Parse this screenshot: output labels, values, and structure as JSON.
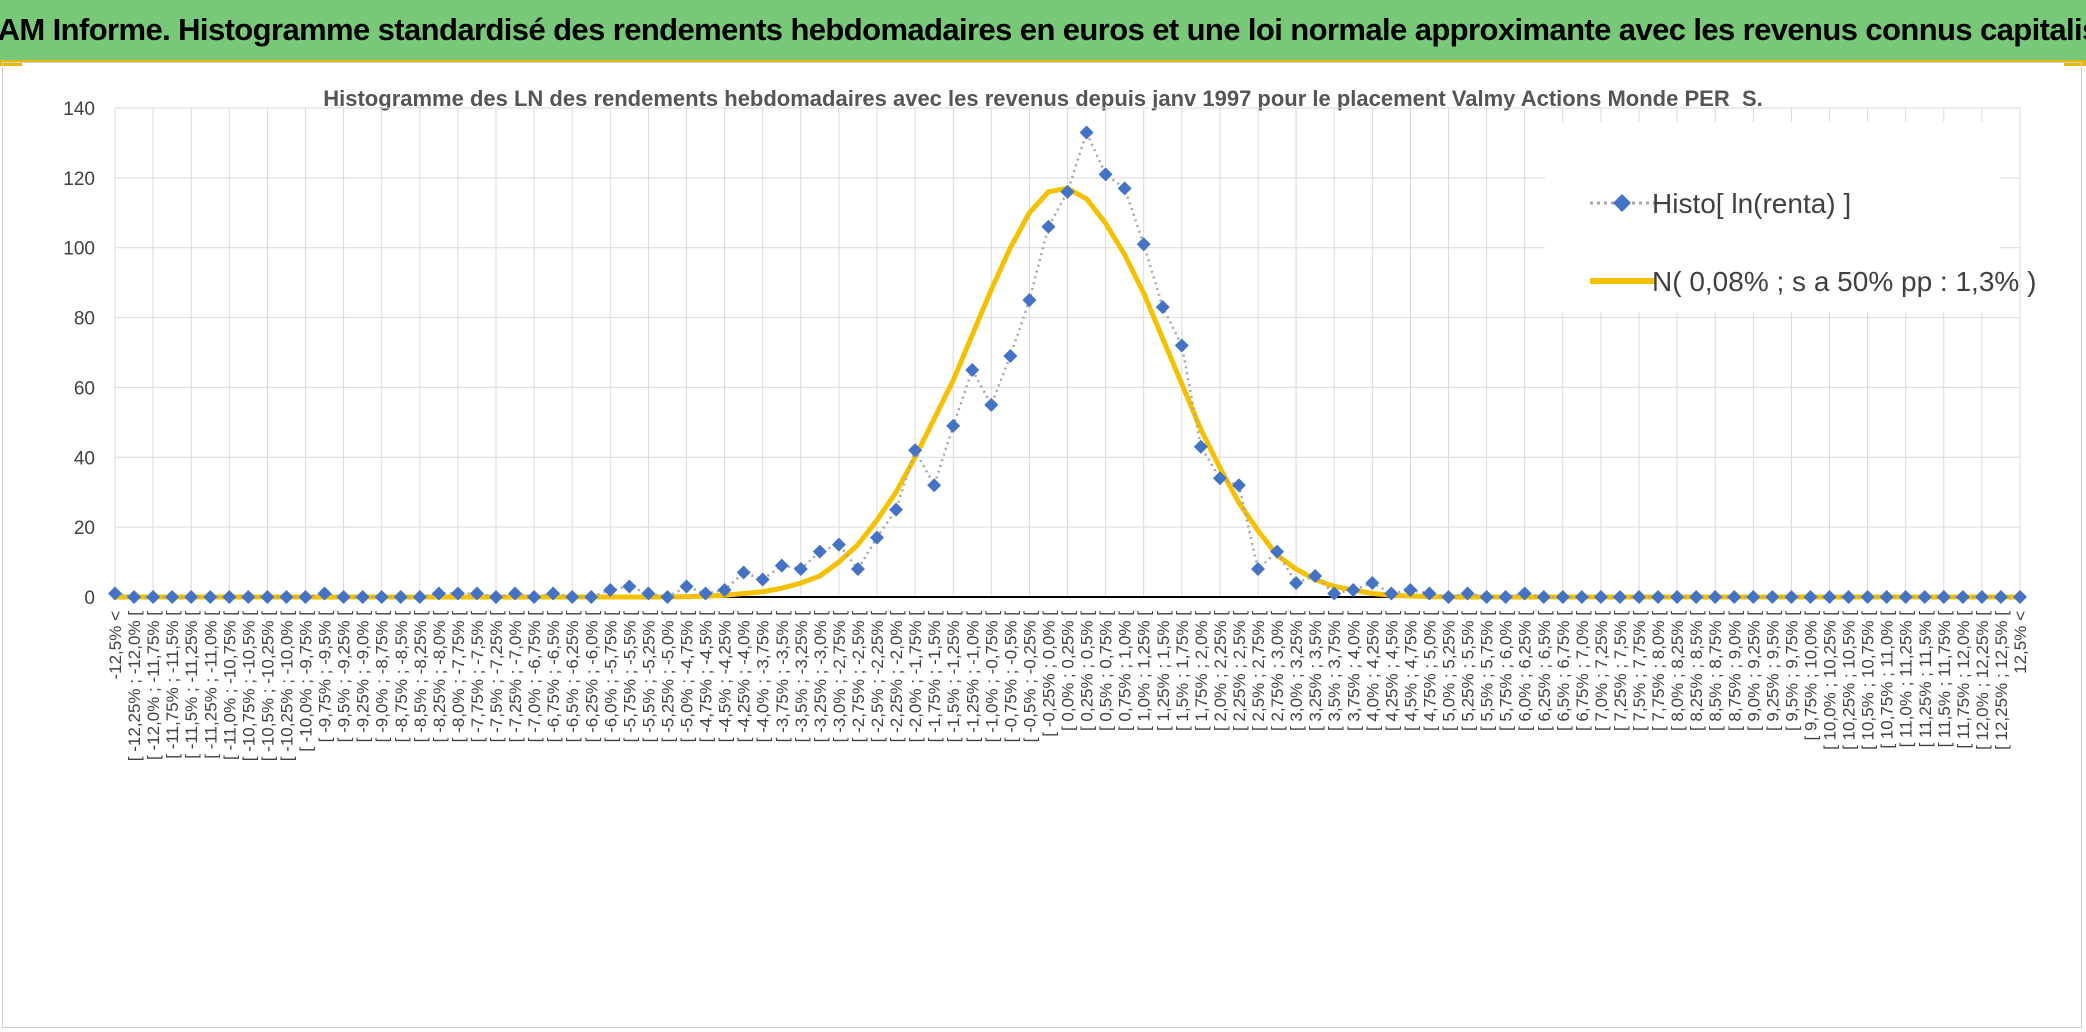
{
  "banner": {
    "title": "ADAM Informe. Histogramme standardisé des rendements hebdomadaires en euros et une loi normale approximante avec les revenus connus capitalisés"
  },
  "colors": {
    "banner_bg": "#79c879",
    "accent": "#e8b800",
    "histo": "#4472c4",
    "normal": "#f5c000"
  },
  "chart_data": {
    "type": "line",
    "title": "Histogramme des LN des rendements hebdomadaires avec les revenus depuis janv 1997 pour le placement Valmy Actions Monde PER_S.",
    "xlabel": "",
    "ylabel": "",
    "ylim": [
      0,
      140
    ],
    "yticks": [
      0,
      20,
      40,
      60,
      80,
      100,
      120,
      140
    ],
    "grid": true,
    "legend_position": "top-right",
    "categories": [
      "-12,5% <",
      "[ -12,25% ; -12,0% [",
      "[ -12,0% ; -11,75% [",
      "[ -11,75% ; -11,5% [",
      "[ -11,5% ; -11,25% [",
      "[ -11,25% ; -11,0% [",
      "[ -11,0% ; -10,75% [",
      "[ -10,75% ; -10,5% [",
      "[ -10,5% ; -10,25% [",
      "[ -10,25% ; -10,0% [",
      "[ -10,0% ; -9,75% [",
      "[ -9,75% ; -9,5% [",
      "[ -9,5% ; -9,25% [",
      "[ -9,25% ; -9,0% [",
      "[ -9,0% ; -8,75% [",
      "[ -8,75% ; -8,5% [",
      "[ -8,5% ; -8,25% [",
      "[ -8,25% ; -8,0% [",
      "[ -8,0% ; -7,75% [",
      "[ -7,75% ; -7,5% [",
      "[ -7,5% ; -7,25% [",
      "[ -7,25% ; -7,0% [",
      "[ -7,0% ; -6,75% [",
      "[ -6,75% ; -6,5% [",
      "[ -6,5% ; -6,25% [",
      "[ -6,25% ; -6,0% [",
      "[ -6,0% ; -5,75% [",
      "[ -5,75% ; -5,5% [",
      "[ -5,5% ; -5,25% [",
      "[ -5,25% ; -5,0% [",
      "[ -5,0% ; -4,75% [",
      "[ -4,75% ; -4,5% [",
      "[ -4,5% ; -4,25% [",
      "[ -4,25% ; -4,0% [",
      "[ -4,0% ; -3,75% [",
      "[ -3,75% ; -3,5% [",
      "[ -3,5% ; -3,25% [",
      "[ -3,25% ; -3,0% [",
      "[ -3,0% ; -2,75% [",
      "[ -2,75% ; -2,5% [",
      "[ -2,5% ; -2,25% [",
      "[ -2,25% ; -2,0% [",
      "[ -2,0% ; -1,75% [",
      "[ -1,75% ; -1,5% [",
      "[ -1,5% ; -1,25% [",
      "[ -1,25% ; -1,0% [",
      "[ -1,0% ; -0,75% [",
      "[ -0,75% ; -0,5% [",
      "[ -0,5% ; -0,25% [",
      "[ -0,25% ; 0,0% [",
      "[ 0,0% ; 0,25% [",
      "[ 0,25% ; 0,5% [",
      "[ 0,5% ; 0,75% [",
      "[ 0,75% ; 1,0% [",
      "[ 1,0% ; 1,25% [",
      "[ 1,25% ; 1,5% [",
      "[ 1,5% ; 1,75% [",
      "[ 1,75% ; 2,0% [",
      "[ 2,0% ; 2,25% [",
      "[ 2,25% ; 2,5% [",
      "[ 2,5% ; 2,75% [",
      "[ 2,75% ; 3,0% [",
      "[ 3,0% ; 3,25% [",
      "[ 3,25% ; 3,5% [",
      "[ 3,5% ; 3,75% [",
      "[ 3,75% ; 4,0% [",
      "[ 4,0% ; 4,25% [",
      "[ 4,25% ; 4,5% [",
      "[ 4,5% ; 4,75% [",
      "[ 4,75% ; 5,0% [",
      "[ 5,0% ; 5,25% [",
      "[ 5,25% ; 5,5% [",
      "[ 5,5% ; 5,75% [",
      "[ 5,75% ; 6,0% [",
      "[ 6,0% ; 6,25% [",
      "[ 6,25% ; 6,5% [",
      "[ 6,5% ; 6,75% [",
      "[ 6,75% ; 7,0% [",
      "[ 7,0% ; 7,25% [",
      "[ 7,25% ; 7,5% [",
      "[ 7,5% ; 7,75% [",
      "[ 7,75% ; 8,0% [",
      "[ 8,0% ; 8,25% [",
      "[ 8,25% ; 8,5% [",
      "[ 8,5% ; 8,75% [",
      "[ 8,75% ; 9,0% [",
      "[ 9,0% ; 9,25% [",
      "[ 9,25% ; 9,5% [",
      "[ 9,5% ; 9,75% [",
      "[ 9,75% ; 10,0% [",
      "[ 10,0% ; 10,25% [",
      "[ 10,25% ; 10,5% [",
      "[ 10,5% ; 10,75% [",
      "[ 10,75% ; 11,0% [",
      "[ 11,0% ; 11,25% [",
      "[ 11,25% ; 11,5% [",
      "[ 11,5% ; 11,75% [",
      "[ 11,75% ; 12,0% [",
      "[ 12,0% ; 12,25% [",
      "[ 12,25% ; 12,5% [",
      "12,5% <"
    ],
    "series": [
      {
        "name": "Histo[ ln(renta) ]",
        "style": "dotted-line-diamond-markers",
        "values": [
          1,
          0,
          0,
          0,
          0,
          0,
          0,
          0,
          0,
          0,
          0,
          1,
          0,
          0,
          0,
          0,
          0,
          1,
          1,
          1,
          0,
          1,
          0,
          1,
          0,
          0,
          2,
          3,
          1,
          0,
          3,
          1,
          2,
          7,
          5,
          9,
          8,
          13,
          15,
          8,
          17,
          25,
          42,
          32,
          49,
          65,
          55,
          69,
          85,
          106,
          116,
          133,
          121,
          117,
          101,
          83,
          72,
          43,
          34,
          32,
          8,
          13,
          4,
          6,
          1,
          2,
          4,
          1,
          2,
          1,
          0,
          1,
          0,
          0,
          1,
          0,
          0,
          0,
          0,
          0,
          0,
          0,
          0,
          0,
          0,
          0,
          0,
          0,
          0,
          0,
          0,
          0,
          0,
          0,
          0,
          0,
          0,
          0,
          0,
          0,
          0
        ]
      },
      {
        "name": "N( 0,08% ; s a 50% pp : 1,3% )",
        "style": "solid-line",
        "values": [
          0,
          0,
          0,
          0,
          0,
          0,
          0,
          0,
          0,
          0,
          0,
          0,
          0,
          0,
          0,
          0,
          0,
          0,
          0,
          0,
          0,
          0,
          0,
          0,
          0,
          0,
          0,
          0,
          0,
          0,
          0.1,
          0.2,
          0.5,
          1,
          1.5,
          2.5,
          4,
          6,
          10,
          15,
          22,
          30,
          40,
          51,
          62,
          75,
          88,
          100,
          110,
          116,
          117,
          114,
          107,
          98,
          87,
          74,
          61,
          48,
          37,
          27,
          19,
          12,
          8,
          5,
          3,
          2,
          1,
          0.5,
          0.3,
          0.1,
          0,
          0,
          0,
          0,
          0,
          0,
          0,
          0,
          0,
          0,
          0,
          0,
          0,
          0,
          0,
          0,
          0,
          0,
          0,
          0,
          0,
          0,
          0,
          0,
          0,
          0,
          0,
          0,
          0,
          0,
          0
        ]
      }
    ]
  }
}
